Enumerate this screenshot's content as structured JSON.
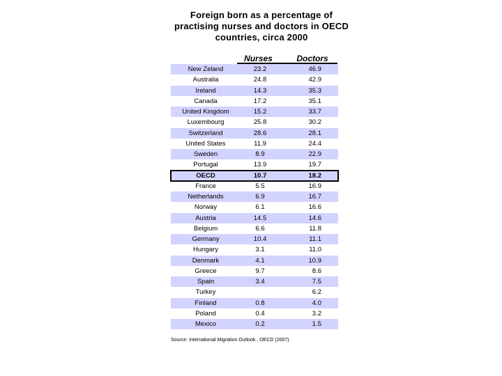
{
  "title_lines": [
    "Foreign born as a percentage of",
    "practising nurses and doctors in OECD",
    "countries, circa 2000"
  ],
  "source": "Source: International Migration Outlook , OECD (2007)",
  "chart_data": {
    "type": "table",
    "columns": [
      "",
      "Nurses",
      "Doctors"
    ],
    "rows": [
      {
        "country": "New Zeland",
        "nurses": "23.2",
        "doctors": "46.9"
      },
      {
        "country": "Australia",
        "nurses": "24.8",
        "doctors": "42.9"
      },
      {
        "country": "Ireland",
        "nurses": "14.3",
        "doctors": "35.3"
      },
      {
        "country": "Canada",
        "nurses": "17.2",
        "doctors": "35.1"
      },
      {
        "country": "United Kingdom",
        "nurses": "15.2",
        "doctors": "33.7"
      },
      {
        "country": "Luxembourg",
        "nurses": "25.8",
        "doctors": "30.2"
      },
      {
        "country": "Switzerland",
        "nurses": "28.6",
        "doctors": "28.1"
      },
      {
        "country": "United States",
        "nurses": "11.9",
        "doctors": "24.4"
      },
      {
        "country": "Sweden",
        "nurses": "8.9",
        "doctors": "22.9"
      },
      {
        "country": "Portugal",
        "nurses": "13.9",
        "doctors": "19.7"
      },
      {
        "country": "OECD",
        "nurses": "10.7",
        "doctors": "18.2",
        "highlight": true
      },
      {
        "country": "France",
        "nurses": "5.5",
        "doctors": "16.9"
      },
      {
        "country": "Netherlands",
        "nurses": "6.9",
        "doctors": "16.7"
      },
      {
        "country": "Norway",
        "nurses": "6.1",
        "doctors": "16.6"
      },
      {
        "country": "Austria",
        "nurses": "14.5",
        "doctors": "14.6"
      },
      {
        "country": "Belgium",
        "nurses": "6.6",
        "doctors": "11.8"
      },
      {
        "country": "Germany",
        "nurses": "10.4",
        "doctors": "11.1"
      },
      {
        "country": "Hungary",
        "nurses": "3.1",
        "doctors": "11.0"
      },
      {
        "country": "Denmark",
        "nurses": "4.1",
        "doctors": "10.9"
      },
      {
        "country": "Greece",
        "nurses": "9.7",
        "doctors": "8.6"
      },
      {
        "country": "Spain",
        "nurses": "3.4",
        "doctors": "7.5"
      },
      {
        "country": "Turkey",
        "nurses": "",
        "doctors": "6.2"
      },
      {
        "country": "Finland",
        "nurses": "0.8",
        "doctors": "4.0"
      },
      {
        "country": "Poland",
        "nurses": "0.4",
        "doctors": "3.2"
      },
      {
        "country": "Mexico",
        "nurses": "0.2",
        "doctors": "1.5"
      }
    ],
    "shade_color": "#d3d3ff"
  }
}
